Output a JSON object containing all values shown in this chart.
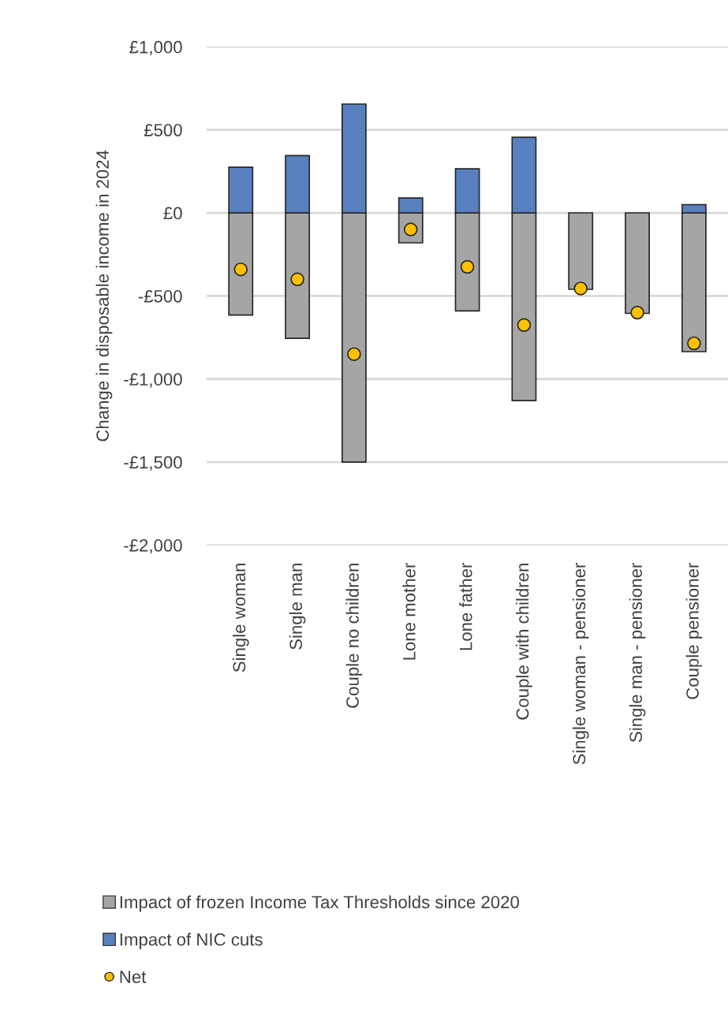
{
  "chart_data": {
    "type": "bar",
    "stacked": true,
    "ylabel": "Change in disposable income in 2024",
    "categories": [
      "Single woman",
      "Single man",
      "Couple no children",
      "Lone mother",
      "Lone father",
      "Couple with children",
      "Single woman - pensioner",
      "Single man - pensioner",
      "Couple pensioner"
    ],
    "series": [
      {
        "name": "Impact of frozen Income Tax Thresholds since 2020",
        "color": "#a5a5a5",
        "values": [
          -615,
          -755,
          -1500,
          -180,
          -590,
          -1130,
          -460,
          -605,
          -835
        ]
      },
      {
        "name": "Impact of NIC cuts",
        "color": "#5880c0",
        "values": [
          275,
          345,
          655,
          90,
          265,
          455,
          null,
          null,
          50
        ]
      },
      {
        "name": "Net",
        "type": "scatter",
        "color": "#ffc000",
        "x": [
          "Single woman",
          "Single man",
          "Couple no children",
          "Lone mother",
          "Lone father",
          "Couple with children",
          "Single woman - pensioner",
          "Single man - pensioner",
          "Couple pensioner"
        ],
        "values": [
          -340,
          -400,
          -850,
          -100,
          -325,
          -675,
          -455,
          -600,
          -785
        ]
      }
    ],
    "marker": "circle",
    "ylim": [
      -2000,
      1000
    ],
    "yticks": [
      {
        "value": -2000,
        "label": "-£2,000"
      },
      {
        "value": -1500,
        "label": "-£1,500"
      },
      {
        "value": -1000,
        "label": "-£1,000"
      },
      {
        "value": -500,
        "label": "-£500"
      },
      {
        "value": 0,
        "label": "£0"
      },
      {
        "value": 500,
        "label": "£500"
      },
      {
        "value": 1000,
        "label": "£1,000"
      }
    ],
    "grid": "y",
    "legend": "bottom"
  }
}
